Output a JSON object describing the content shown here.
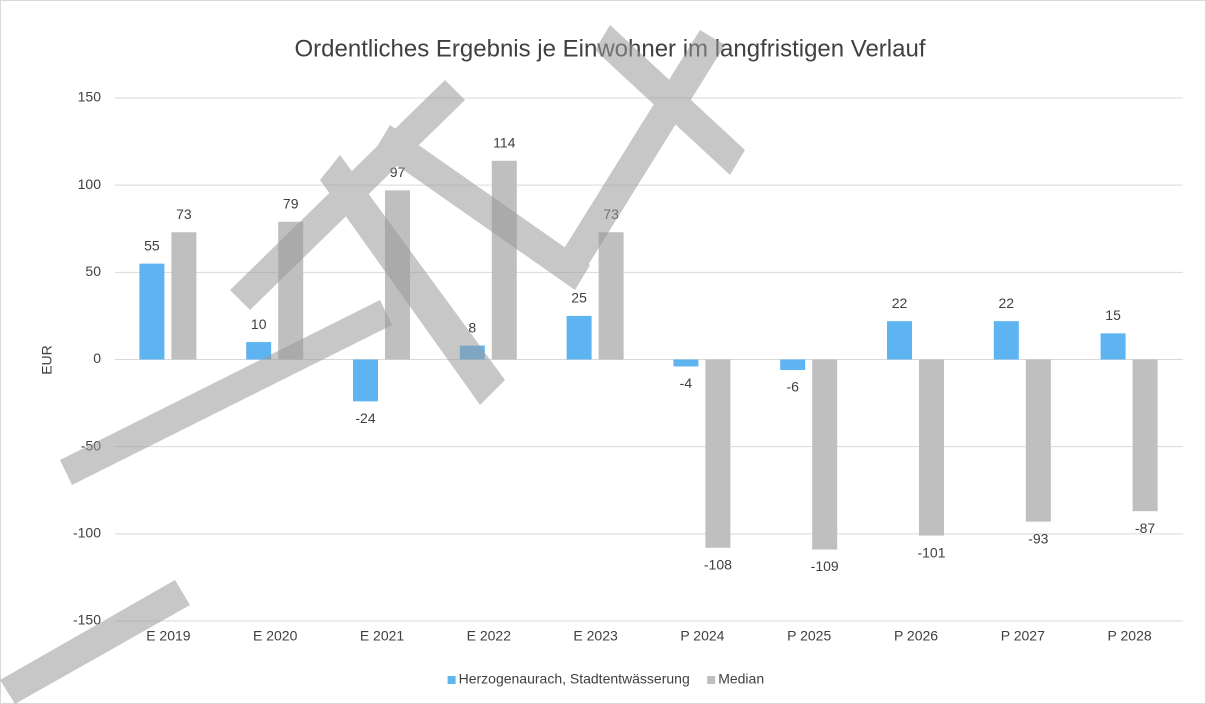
{
  "chart_data": {
    "type": "bar",
    "title": "Ordentliches Ergebnis je Einwohner im langfristigen Verlauf",
    "y_label": "EUR",
    "categories": [
      "E 2019",
      "E 2020",
      "E 2021",
      "E 2022",
      "E 2023",
      "P 2024",
      "P 2025",
      "P 2026",
      "P 2027",
      "P 2028"
    ],
    "series": [
      {
        "name": "Herzogenaurach, Stadtentwässerung",
        "color": "#5eb4f1",
        "values": [
          55,
          10,
          -24,
          8,
          25,
          -4,
          -6,
          22,
          22,
          15
        ]
      },
      {
        "name": "Median",
        "color": "#bfbfbf",
        "values": [
          73,
          79,
          97,
          114,
          73,
          -108,
          -109,
          -101,
          -93,
          -87
        ]
      }
    ],
    "ylim": [
      -150,
      150
    ],
    "yticks": [
      -150,
      -100,
      -50,
      0,
      50,
      100,
      150
    ],
    "grid": true,
    "legend": "bottom"
  }
}
